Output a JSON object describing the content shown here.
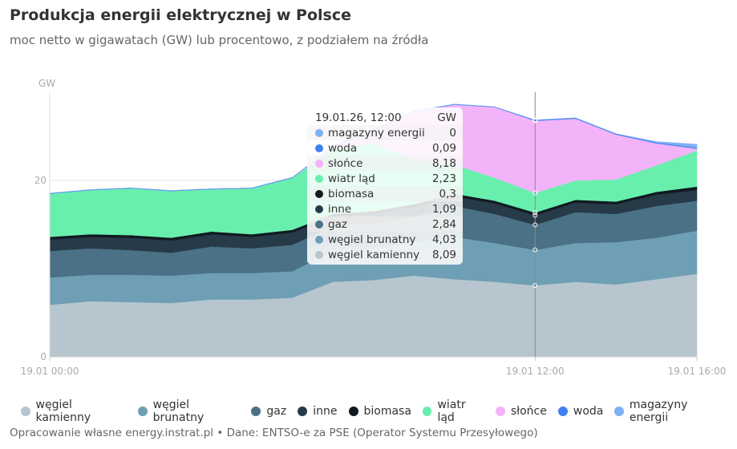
{
  "title": "Produkcja energii elektrycznej w Polsce",
  "subtitle": "moc netto w gigawatach (GW) lub procentowo, z podziałem na źródła",
  "footer": "Opracowanie własne energy.instrat.pl • Dane: ENTSO-e za PSE (Operator Systemu Przesyłowego)",
  "tooltip": {
    "header": "19.01.26, 12:00",
    "unit": "GW",
    "rows": [
      {
        "label": "magazyny energii",
        "value": "0",
        "color": "#7fb0f5"
      },
      {
        "label": "woda",
        "value": "0,09",
        "color": "#3d82f0"
      },
      {
        "label": "słońce",
        "value": "8,18",
        "color": "#f3b3f8"
      },
      {
        "label": "wiatr ląd",
        "value": "2,23",
        "color": "#68efad"
      },
      {
        "label": "biomasa",
        "value": "0,3",
        "color": "#111a20"
      },
      {
        "label": "inne",
        "value": "1,09",
        "color": "#263a47"
      },
      {
        "label": "gaz",
        "value": "2,84",
        "color": "#4a7186"
      },
      {
        "label": "węgiel brunatny",
        "value": "4,03",
        "color": "#6f9fb5"
      },
      {
        "label": "węgiel kamienny",
        "value": "8,09",
        "color": "#b7c6ce"
      }
    ]
  },
  "chart_data": {
    "type": "area",
    "stacked": true,
    "ylabel": "GW",
    "ylim": [
      0,
      30
    ],
    "yticks": [
      "0",
      "20"
    ],
    "y_tick_values": [
      0,
      20
    ],
    "xticks": [
      "19.01 00:00",
      "19.01 12:00",
      "19.01 16:00"
    ],
    "x_tick_hours": [
      0,
      12,
      16
    ],
    "x_hours": [
      0,
      1,
      2,
      3,
      4,
      5,
      6,
      7,
      8,
      9,
      10,
      11,
      12,
      13,
      14,
      15,
      16
    ],
    "hover_hour": 12,
    "grid": "horizontal",
    "legend_position": "bottom",
    "series": [
      {
        "name": "węgiel kamienny",
        "color": "#b7c6ce",
        "values": [
          5.9,
          6.3,
          6.2,
          6.1,
          6.5,
          6.5,
          6.7,
          8.5,
          8.7,
          9.2,
          8.8,
          8.5,
          8.09,
          8.5,
          8.2,
          8.8,
          9.4
        ]
      },
      {
        "name": "węgiel brunatny",
        "color": "#6f9fb5",
        "values": [
          3.1,
          3.0,
          3.1,
          3.1,
          3.0,
          3.0,
          3.0,
          3.5,
          3.6,
          3.8,
          4.8,
          4.4,
          4.03,
          4.4,
          4.8,
          4.7,
          4.9
        ]
      },
      {
        "name": "gaz",
        "color": "#4a7186",
        "values": [
          3.0,
          3.0,
          2.8,
          2.6,
          3.0,
          2.8,
          3.0,
          2.8,
          2.8,
          2.9,
          3.5,
          3.3,
          2.84,
          3.5,
          3.2,
          3.6,
          3.4
        ]
      },
      {
        "name": "inne",
        "color": "#263a47",
        "values": [
          1.3,
          1.3,
          1.4,
          1.4,
          1.4,
          1.3,
          1.4,
          1.1,
          1.1,
          1.1,
          1.1,
          1.2,
          1.09,
          1.1,
          1.1,
          1.3,
          1.2
        ]
      },
      {
        "name": "biomasa",
        "color": "#111a20",
        "values": [
          0.3,
          0.3,
          0.3,
          0.3,
          0.3,
          0.3,
          0.3,
          0.3,
          0.3,
          0.3,
          0.3,
          0.3,
          0.3,
          0.3,
          0.3,
          0.3,
          0.4
        ]
      },
      {
        "name": "wiatr ląd",
        "color": "#68efad",
        "values": [
          4.9,
          5.0,
          5.3,
          5.3,
          4.8,
          5.2,
          5.9,
          7.3,
          7.7,
          5.0,
          3.3,
          2.6,
          2.23,
          2.2,
          2.5,
          3.0,
          4.1
        ]
      },
      {
        "name": "słońce",
        "color": "#f3b3f8",
        "values": [
          0,
          0,
          0,
          0,
          0,
          0,
          0,
          0.3,
          1.5,
          5.5,
          6.8,
          8.0,
          8.18,
          7.0,
          5.1,
          2.5,
          0.2
        ]
      },
      {
        "name": "woda",
        "color": "#3d82f0",
        "values": [
          0.05,
          0.05,
          0.05,
          0.05,
          0.05,
          0.05,
          0.05,
          0.05,
          0.05,
          0.05,
          0.05,
          0.05,
          0.09,
          0.09,
          0.09,
          0.1,
          0.1
        ]
      },
      {
        "name": "magazyny energii",
        "color": "#7fb0f5",
        "values": [
          0,
          0,
          0,
          0,
          0,
          0,
          0,
          0,
          0,
          0,
          0,
          0,
          0,
          0,
          0,
          0.1,
          0.4
        ]
      }
    ]
  }
}
